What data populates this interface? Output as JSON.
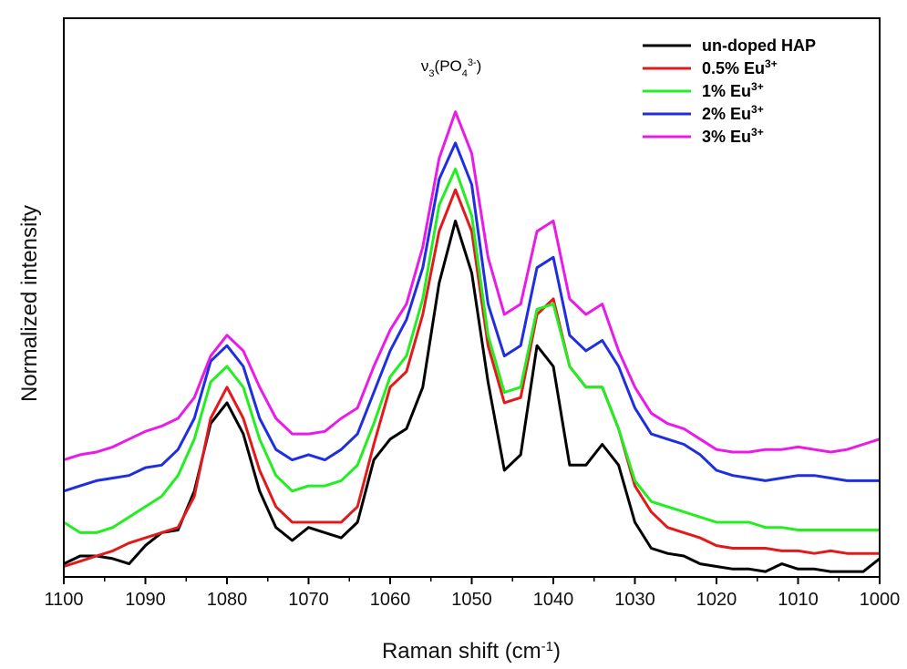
{
  "chart_data": {
    "type": "line",
    "xlabel": "Raman shift (cm",
    "xlabel_sup": "-1",
    "xlabel_suffix": ")",
    "ylabel": "Normalized intensity",
    "xlim": [
      1100,
      1000
    ],
    "ylim": [
      0,
      10
    ],
    "x_ticks": [
      1100,
      1090,
      1080,
      1070,
      1060,
      1050,
      1040,
      1030,
      1020,
      1010,
      1000
    ],
    "x_reversed": true,
    "y_ticks_visible": false,
    "grid": false,
    "legend_position": "top-right",
    "annotation": {
      "text_nu": "ν",
      "sub3": "3",
      "paren_open": "(PO",
      "sub4": "4",
      "sup_charge": "3-",
      "paren_close": ")",
      "x": 1052.5
    },
    "x": [
      1100,
      1098,
      1096,
      1094,
      1092,
      1090,
      1088,
      1086,
      1084,
      1082,
      1080,
      1078,
      1076,
      1074,
      1072,
      1070,
      1068,
      1066,
      1064,
      1062,
      1060,
      1058,
      1056,
      1054,
      1052,
      1050,
      1048,
      1046,
      1044,
      1042,
      1040,
      1038,
      1036,
      1034,
      1032,
      1030,
      1028,
      1026,
      1024,
      1022,
      1020,
      1018,
      1016,
      1014,
      1012,
      1010,
      1008,
      1006,
      1004,
      1002,
      1000
    ],
    "series": [
      {
        "name": "un-doped HAP",
        "color": "#000000",
        "values": [
          0.2,
          0.35,
          0.35,
          0.3,
          0.2,
          0.55,
          0.8,
          0.85,
          1.6,
          2.9,
          3.3,
          2.7,
          1.6,
          0.9,
          0.65,
          0.9,
          0.8,
          0.7,
          1.0,
          2.2,
          2.6,
          2.8,
          3.6,
          5.6,
          6.8,
          5.8,
          3.7,
          2.0,
          2.3,
          4.4,
          4.0,
          2.1,
          2.1,
          2.5,
          2.1,
          1.0,
          0.5,
          0.4,
          0.35,
          0.2,
          0.15,
          0.1,
          0.1,
          0.05,
          0.2,
          0.1,
          0.1,
          0.05,
          0.05,
          0.05,
          0.3
        ]
      },
      {
        "name": "0.5% Eu",
        "sup": "3+",
        "color": "#e31a1c",
        "values": [
          0.15,
          0.25,
          0.35,
          0.45,
          0.6,
          0.7,
          0.8,
          0.9,
          1.5,
          3.0,
          3.6,
          3.0,
          2.0,
          1.3,
          1.0,
          1.0,
          1.0,
          1.0,
          1.3,
          2.5,
          3.6,
          3.9,
          5.0,
          6.6,
          7.4,
          6.6,
          4.4,
          3.3,
          3.4,
          5.0,
          5.3,
          4.0,
          3.6,
          3.6,
          2.8,
          1.7,
          1.2,
          0.9,
          0.8,
          0.7,
          0.55,
          0.5,
          0.5,
          0.5,
          0.45,
          0.45,
          0.4,
          0.45,
          0.4,
          0.4,
          0.4
        ]
      },
      {
        "name": "1% Eu",
        "sup": "3+",
        "color": "#22ee22",
        "values": [
          1.0,
          0.8,
          0.8,
          0.9,
          1.1,
          1.3,
          1.5,
          1.9,
          2.6,
          3.7,
          4.0,
          3.6,
          2.6,
          1.9,
          1.6,
          1.7,
          1.7,
          1.8,
          2.1,
          2.9,
          3.8,
          4.2,
          5.3,
          7.1,
          7.8,
          6.9,
          4.6,
          3.5,
          3.6,
          5.1,
          5.2,
          4.0,
          3.6,
          3.6,
          2.8,
          1.8,
          1.4,
          1.3,
          1.2,
          1.1,
          1.0,
          1.0,
          1.0,
          0.9,
          0.9,
          0.85,
          0.85,
          0.85,
          0.85,
          0.85,
          0.85
        ]
      },
      {
        "name": "2% Eu",
        "sup": "3+",
        "color": "#1f2fe0",
        "values": [
          1.6,
          1.7,
          1.8,
          1.85,
          1.9,
          2.05,
          2.1,
          2.4,
          3.0,
          4.1,
          4.4,
          4.0,
          3.0,
          2.4,
          2.2,
          2.3,
          2.2,
          2.4,
          2.7,
          3.5,
          4.3,
          4.9,
          5.9,
          7.6,
          8.3,
          7.5,
          5.2,
          4.2,
          4.4,
          5.9,
          6.1,
          4.6,
          4.3,
          4.5,
          4.0,
          3.2,
          2.7,
          2.6,
          2.5,
          2.3,
          2.0,
          1.9,
          1.85,
          1.8,
          1.85,
          1.9,
          1.9,
          1.85,
          1.8,
          1.8,
          1.8
        ]
      },
      {
        "name": "3% Eu",
        "sup": "3+",
        "color": "#e81be8",
        "values": [
          2.2,
          2.3,
          2.35,
          2.45,
          2.6,
          2.75,
          2.85,
          3.0,
          3.4,
          4.2,
          4.6,
          4.3,
          3.6,
          3.0,
          2.7,
          2.7,
          2.75,
          3.0,
          3.2,
          4.0,
          4.7,
          5.2,
          6.3,
          8.0,
          8.9,
          8.1,
          6.1,
          5.0,
          5.2,
          6.6,
          6.8,
          5.3,
          5.0,
          5.2,
          4.3,
          3.6,
          3.1,
          2.9,
          2.8,
          2.6,
          2.4,
          2.35,
          2.35,
          2.4,
          2.4,
          2.45,
          2.4,
          2.35,
          2.4,
          2.5,
          2.6
        ]
      }
    ]
  }
}
